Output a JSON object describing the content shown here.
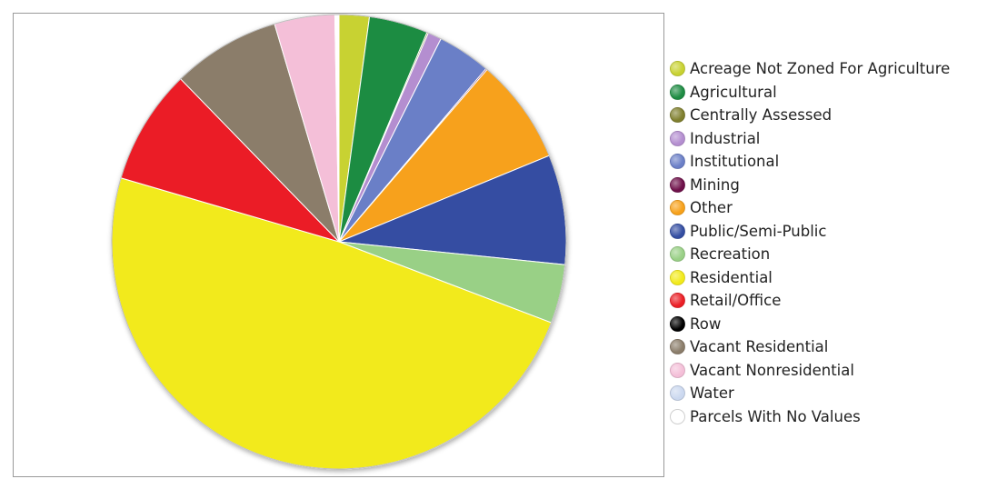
{
  "chart_data": {
    "type": "pie",
    "title": "",
    "start_angle_deg": 0,
    "direction": "clockwise",
    "legend_position": "right",
    "slices": [
      {
        "label": "Acreage Not Zoned For Agriculture",
        "value": 2.2,
        "color": "#c8d231"
      },
      {
        "label": "Agricultural",
        "value": 4.3,
        "color": "#1e8c43"
      },
      {
        "label": "Centrally Assessed",
        "value": 0.1,
        "color": "#7f7f2e"
      },
      {
        "label": "Industrial",
        "value": 1.0,
        "color": "#b48ed0"
      },
      {
        "label": "Institutional",
        "value": 3.9,
        "color": "#6b7fc7"
      },
      {
        "label": "Mining",
        "value": 0.1,
        "color": "#6e1049"
      },
      {
        "label": "Other",
        "value": 7.7,
        "color": "#f7a11a"
      },
      {
        "label": "Public/Semi-Public",
        "value": 8.0,
        "color": "#344ea2"
      },
      {
        "label": "Recreation",
        "value": 4.3,
        "color": "#99d086"
      },
      {
        "label": "Residential",
        "value": 50.0,
        "color": "#f2ea1a"
      },
      {
        "label": "Retail/Office",
        "value": 8.4,
        "color": "#eb1e25"
      },
      {
        "label": "Row",
        "value": 0.0,
        "color": "#000000"
      },
      {
        "label": "Vacant Residential",
        "value": 7.9,
        "color": "#8b7d6a"
      },
      {
        "label": "Vacant Nonresidential",
        "value": 4.4,
        "color": "#f4bfd8"
      },
      {
        "label": "Water",
        "value": 0.0,
        "color": "#cbd8ef"
      },
      {
        "label": "Parcels With No Values",
        "value": 0.3,
        "color": "#ffffff"
      }
    ]
  }
}
